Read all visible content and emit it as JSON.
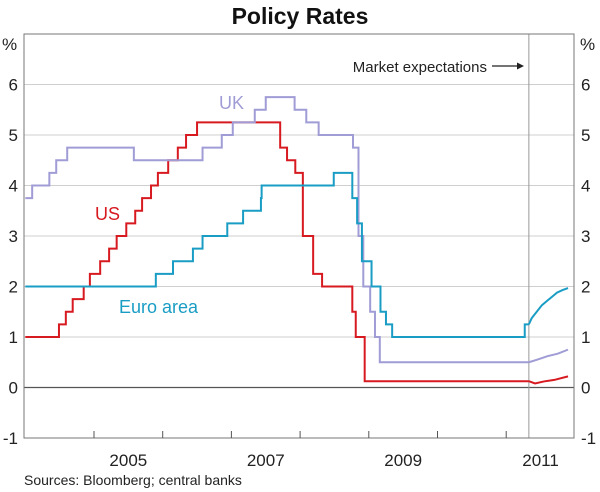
{
  "chart_data": {
    "type": "line",
    "title": "Policy Rates",
    "source": "Sources: Bloomberg; central banks",
    "ylabel_left": "%",
    "ylabel_right": "%",
    "xlim": [
      2004.0,
      2012.0
    ],
    "ylim": [
      -1,
      7
    ],
    "yticks": [
      -1,
      0,
      1,
      2,
      3,
      4,
      5,
      6
    ],
    "ytick_labels": [
      "-1",
      "0",
      "1",
      "2",
      "3",
      "4",
      "5",
      "6"
    ],
    "xtick_boundaries": [
      2005,
      2006,
      2007,
      2008,
      2009,
      2010,
      2011
    ],
    "xtick_labels": [
      {
        "label": "2005",
        "year": 2005
      },
      {
        "label": "2007",
        "year": 2007
      },
      {
        "label": "2009",
        "year": 2009
      },
      {
        "label": "2011",
        "year": 2011
      }
    ],
    "grid": true,
    "annotation": {
      "text": "Market expectations",
      "forecast_start": 2011.33
    },
    "series": [
      {
        "name": "US",
        "label": "US",
        "color": "#d71920",
        "step": true,
        "points": [
          [
            2004.0,
            1.0
          ],
          [
            2004.49,
            1.25
          ],
          [
            2004.59,
            1.5
          ],
          [
            2004.69,
            1.75
          ],
          [
            2004.85,
            2.0
          ],
          [
            2004.94,
            2.25
          ],
          [
            2005.09,
            2.5
          ],
          [
            2005.22,
            2.75
          ],
          [
            2005.33,
            3.0
          ],
          [
            2005.47,
            3.25
          ],
          [
            2005.6,
            3.5
          ],
          [
            2005.7,
            3.75
          ],
          [
            2005.83,
            4.0
          ],
          [
            2005.93,
            4.25
          ],
          [
            2006.08,
            4.5
          ],
          [
            2006.22,
            4.75
          ],
          [
            2006.34,
            5.0
          ],
          [
            2006.5,
            5.25
          ],
          [
            2007.71,
            4.75
          ],
          [
            2007.81,
            4.5
          ],
          [
            2007.93,
            4.25
          ],
          [
            2008.04,
            3.0
          ],
          [
            2008.19,
            2.25
          ],
          [
            2008.32,
            2.0
          ],
          [
            2008.76,
            1.5
          ],
          [
            2008.81,
            1.0
          ],
          [
            2008.94,
            0.125
          ]
        ],
        "expectations": [
          [
            2011.33,
            0.125
          ],
          [
            2011.42,
            0.08
          ],
          [
            2011.55,
            0.12
          ],
          [
            2011.7,
            0.15
          ],
          [
            2011.9,
            0.22
          ]
        ]
      },
      {
        "name": "UK",
        "label": "UK",
        "color": "#a09cd6",
        "step": true,
        "points": [
          [
            2004.0,
            3.75
          ],
          [
            2004.1,
            4.0
          ],
          [
            2004.35,
            4.25
          ],
          [
            2004.45,
            4.5
          ],
          [
            2004.61,
            4.75
          ],
          [
            2005.58,
            4.5
          ],
          [
            2006.58,
            4.75
          ],
          [
            2006.86,
            5.0
          ],
          [
            2007.02,
            5.25
          ],
          [
            2007.34,
            5.5
          ],
          [
            2007.5,
            5.75
          ],
          [
            2007.92,
            5.5
          ],
          [
            2008.09,
            5.25
          ],
          [
            2008.27,
            5.0
          ],
          [
            2008.77,
            4.75
          ],
          [
            2008.85,
            3.0
          ],
          [
            2008.92,
            2.0
          ],
          [
            2009.02,
            1.5
          ],
          [
            2009.09,
            1.0
          ],
          [
            2009.16,
            0.5
          ]
        ],
        "expectations": [
          [
            2011.33,
            0.5
          ],
          [
            2011.45,
            0.55
          ],
          [
            2011.6,
            0.62
          ],
          [
            2011.75,
            0.67
          ],
          [
            2011.9,
            0.75
          ]
        ]
      },
      {
        "name": "Euro area",
        "label": "Euro area",
        "color": "#1a9dc4",
        "step": true,
        "points": [
          [
            2004.0,
            2.0
          ],
          [
            2005.9,
            2.25
          ],
          [
            2006.15,
            2.5
          ],
          [
            2006.44,
            2.75
          ],
          [
            2006.58,
            3.0
          ],
          [
            2006.94,
            3.25
          ],
          [
            2007.17,
            3.5
          ],
          [
            2007.43,
            3.75
          ],
          [
            2007.44,
            4.0
          ],
          [
            2008.49,
            4.25
          ],
          [
            2008.76,
            3.75
          ],
          [
            2008.83,
            3.25
          ],
          [
            2008.9,
            2.5
          ],
          [
            2009.04,
            2.0
          ],
          [
            2009.17,
            1.5
          ],
          [
            2009.25,
            1.25
          ],
          [
            2009.34,
            1.0
          ],
          [
            2011.27,
            1.25
          ]
        ],
        "expectations": [
          [
            2011.33,
            1.25
          ],
          [
            2011.37,
            1.37
          ],
          [
            2011.45,
            1.51
          ],
          [
            2011.52,
            1.63
          ],
          [
            2011.59,
            1.71
          ],
          [
            2011.67,
            1.8
          ],
          [
            2011.74,
            1.88
          ],
          [
            2011.82,
            1.93
          ],
          [
            2011.9,
            1.97
          ]
        ]
      }
    ]
  }
}
